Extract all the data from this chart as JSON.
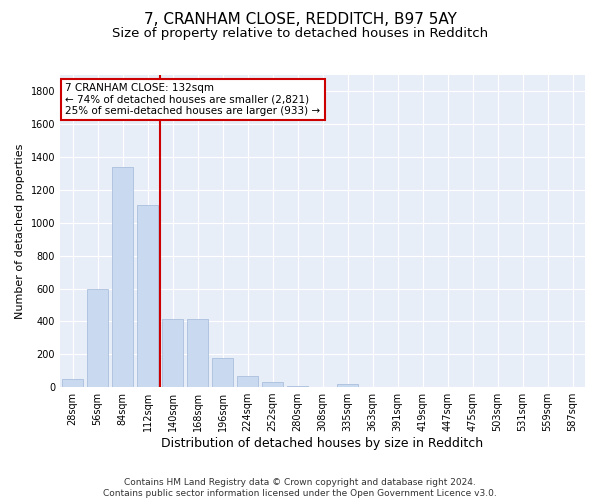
{
  "title": "7, CRANHAM CLOSE, REDDITCH, B97 5AY",
  "subtitle": "Size of property relative to detached houses in Redditch",
  "xlabel": "Distribution of detached houses by size in Redditch",
  "ylabel": "Number of detached properties",
  "categories": [
    "28sqm",
    "56sqm",
    "84sqm",
    "112sqm",
    "140sqm",
    "168sqm",
    "196sqm",
    "224sqm",
    "252sqm",
    "280sqm",
    "308sqm",
    "335sqm",
    "363sqm",
    "391sqm",
    "419sqm",
    "447sqm",
    "475sqm",
    "503sqm",
    "531sqm",
    "559sqm",
    "587sqm"
  ],
  "values": [
    50,
    595,
    1340,
    1110,
    415,
    415,
    175,
    65,
    30,
    5,
    0,
    20,
    0,
    0,
    0,
    0,
    0,
    0,
    0,
    0,
    0
  ],
  "bar_color": "#c9d9f0",
  "bar_edge_color": "#a0b8d8",
  "property_line_color": "#cc0000",
  "annotation_box_color": "#cc0000",
  "annotation_line1": "7 CRANHAM CLOSE: 132sqm",
  "annotation_line2": "← 74% of detached houses are smaller (2,821)",
  "annotation_line3": "25% of semi-detached houses are larger (933) →",
  "ylim": [
    0,
    1900
  ],
  "yticks": [
    0,
    200,
    400,
    600,
    800,
    1000,
    1200,
    1400,
    1600,
    1800
  ],
  "bg_color": "#e8eef8",
  "grid_color": "#ffffff",
  "footer": "Contains HM Land Registry data © Crown copyright and database right 2024.\nContains public sector information licensed under the Open Government Licence v3.0.",
  "title_fontsize": 11,
  "subtitle_fontsize": 9.5,
  "xlabel_fontsize": 9,
  "ylabel_fontsize": 8,
  "tick_fontsize": 7,
  "annot_fontsize": 7.5,
  "footer_fontsize": 6.5
}
